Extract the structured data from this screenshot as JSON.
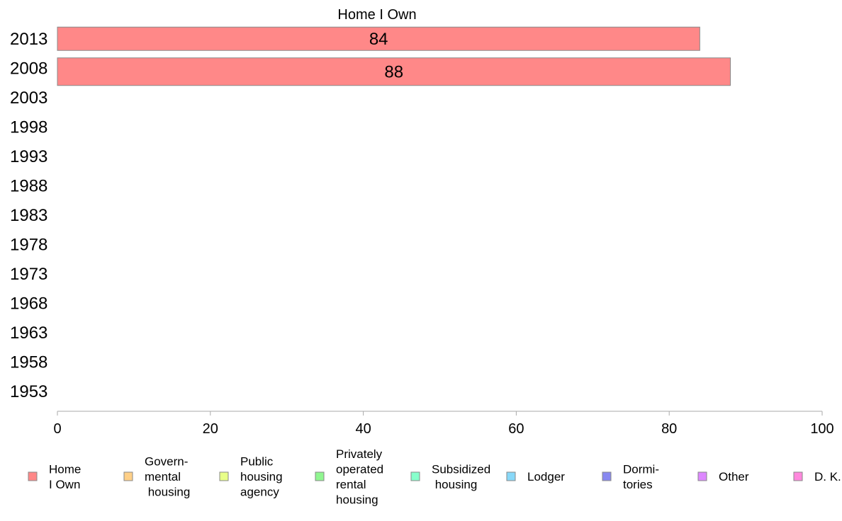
{
  "chart_data": {
    "type": "bar",
    "orientation": "horizontal",
    "title": "Home I Own",
    "categories": [
      "2013",
      "2008",
      "2003",
      "1998",
      "1993",
      "1988",
      "1983",
      "1978",
      "1973",
      "1968",
      "1963",
      "1958",
      "1953"
    ],
    "series": [
      {
        "name": "Home I Own",
        "values": [
          84,
          88,
          null,
          null,
          null,
          null,
          null,
          null,
          null,
          null,
          null,
          null,
          null
        ],
        "color": "#ff8888"
      }
    ],
    "data_labels": [
      "84",
      "88"
    ],
    "xlim": [
      0,
      100
    ],
    "xticks": [
      "0",
      "20",
      "40",
      "60",
      "80",
      "100"
    ],
    "grid": false,
    "legend_position": "bottom",
    "legend": [
      {
        "lines": [
          "Home",
          "I Own"
        ],
        "color": "#ff8888"
      },
      {
        "lines": [
          "Govern-",
          "mental",
          " housing"
        ],
        "color": "#ffd088"
      },
      {
        "lines": [
          "Public",
          "housing",
          "agency"
        ],
        "color": "#e8ff88"
      },
      {
        "lines": [
          "Privately",
          "operated",
          "rental",
          "housing"
        ],
        "color": "#90f690"
      },
      {
        "lines": [
          "Subsidized",
          " housing"
        ],
        "color": "#88ffcc"
      },
      {
        "lines": [
          "Lodger"
        ],
        "color": "#88d8f8"
      },
      {
        "lines": [
          "Dormi-",
          "tories"
        ],
        "color": "#8888f0"
      },
      {
        "lines": [
          "Other"
        ],
        "color": "#dd88ff"
      },
      {
        "lines": [
          "D. K."
        ],
        "color": "#ff88dd"
      }
    ]
  }
}
